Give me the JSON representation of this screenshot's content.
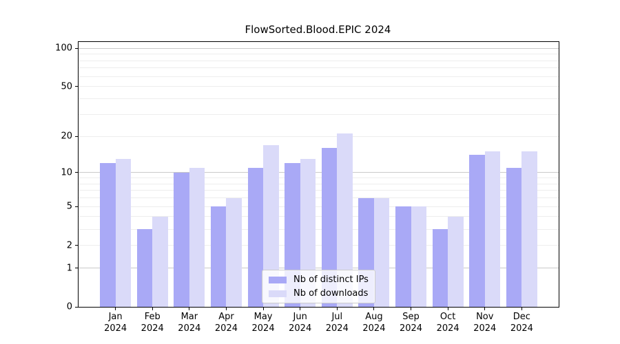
{
  "chart_data": {
    "type": "bar",
    "title": "FlowSorted.Blood.EPIC 2024",
    "months": [
      "Jan",
      "Feb",
      "Mar",
      "Apr",
      "May",
      "Jun",
      "Jul",
      "Aug",
      "Sep",
      "Oct",
      "Nov",
      "Dec"
    ],
    "year": "2024",
    "series": [
      {
        "name": "Nb of distinct IPs",
        "color": "#a9a9f6",
        "values": [
          12,
          3,
          10,
          5,
          11,
          12,
          16,
          6,
          5,
          3,
          14,
          11
        ]
      },
      {
        "name": "Nb of downloads",
        "color": "#dadaf9",
        "values": [
          13,
          4,
          11,
          6,
          17,
          13,
          21,
          6,
          5,
          4,
          15,
          15
        ]
      }
    ],
    "scale": "log1p",
    "ylim": [
      0,
      112
    ],
    "yticks_labeled": [
      0,
      1,
      2,
      5,
      10,
      20,
      50,
      100
    ],
    "gridlines_major": [
      1,
      10,
      100
    ],
    "gridlines_minor": [
      2,
      3,
      4,
      5,
      6,
      7,
      8,
      9,
      20,
      30,
      40,
      50,
      60,
      70,
      80,
      90
    ],
    "grid": true,
    "legend_position": "lower center",
    "colors": {
      "grid_major": "#c9c9c9",
      "grid_minor": "#ededed",
      "axis": "#000000"
    }
  }
}
